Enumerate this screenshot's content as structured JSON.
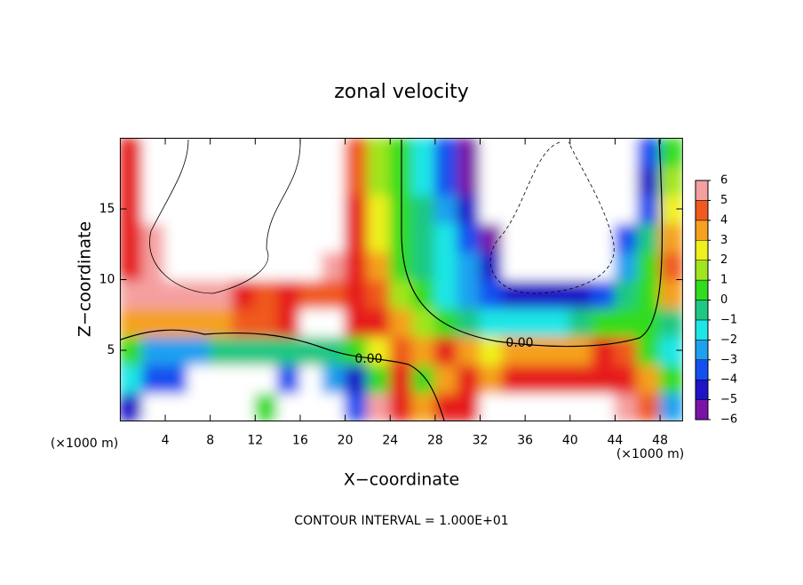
{
  "chart_data": {
    "type": "heatmap",
    "title": "zonal velocity",
    "x_label": "X−coordinate",
    "y_label": "Z−coordinate",
    "x_unit": "(×1000 m)",
    "y_unit": "(×1000 m)",
    "footer": "CONTOUR INTERVAL = 1.000E+01",
    "contour_labels": [
      "0.00",
      "0.00"
    ],
    "xlim": [
      0,
      50
    ],
    "ylim": [
      0,
      20
    ],
    "xticks": [
      4,
      8,
      12,
      16,
      20,
      24,
      28,
      32,
      36,
      40,
      44,
      48
    ],
    "yticks": [
      5,
      10,
      15
    ],
    "x": [
      1,
      3,
      5,
      7,
      9,
      11,
      13,
      15,
      17,
      19,
      21,
      23,
      25,
      27,
      29,
      31,
      33,
      35,
      37,
      39,
      41,
      43,
      45,
      47,
      49
    ],
    "y": [
      1,
      3,
      5,
      7,
      9,
      11,
      13,
      15,
      17,
      19
    ],
    "values": [
      [
        -5,
        9,
        9,
        9,
        9,
        9,
        0,
        9,
        9,
        9,
        -4,
        6,
        5,
        3,
        5,
        5,
        9,
        9,
        9,
        9,
        9,
        9,
        6,
        4,
        -3
      ],
      [
        -2,
        -4,
        -4,
        9,
        9,
        9,
        9,
        -4,
        9,
        -3,
        -5,
        0,
        5,
        0,
        3,
        5,
        3,
        5,
        5,
        5,
        5,
        5,
        5,
        3,
        0
      ],
      [
        0,
        -3,
        -3,
        -3,
        -1,
        -1,
        -1,
        -1,
        -1,
        -1,
        0,
        2,
        4,
        3,
        5,
        3,
        2,
        3,
        3,
        3,
        3,
        5,
        4,
        0,
        -2
      ],
      [
        3,
        3,
        3,
        3,
        3,
        4,
        4,
        5,
        9,
        9,
        5,
        5,
        3,
        1,
        0,
        -1,
        -2,
        -2,
        -2,
        -2,
        -1,
        0,
        0,
        0,
        -1
      ],
      [
        6,
        6,
        6,
        6,
        6,
        5,
        4,
        5,
        4,
        4,
        5,
        4,
        1,
        0,
        -2,
        -3,
        -4,
        -5,
        -5,
        -5,
        -5,
        -4,
        -1,
        0,
        3
      ],
      [
        5,
        6,
        9,
        9,
        9,
        9,
        9,
        9,
        9,
        6,
        5,
        3,
        0,
        -1,
        -2,
        -3,
        -5,
        9,
        9,
        9,
        9,
        9,
        -3,
        0,
        4
      ],
      [
        5,
        6,
        9,
        9,
        9,
        9,
        9,
        9,
        9,
        9,
        5,
        2,
        0,
        -1,
        -2,
        -4,
        -6,
        9,
        9,
        9,
        9,
        9,
        -4,
        -1,
        3
      ],
      [
        5,
        7,
        9,
        9,
        9,
        9,
        9,
        9,
        9,
        9,
        5,
        2,
        0,
        -1,
        -3,
        -5,
        9,
        9,
        9,
        9,
        9,
        9,
        9,
        -4,
        2
      ],
      [
        5,
        7,
        9,
        9,
        9,
        9,
        9,
        9,
        9,
        9,
        4,
        1,
        0,
        -2,
        -4,
        -6,
        9,
        9,
        9,
        9,
        9,
        9,
        9,
        -5,
        1
      ],
      [
        5,
        7,
        9,
        9,
        9,
        9,
        9,
        9,
        9,
        9,
        4,
        1,
        0,
        -2,
        -4,
        -6,
        9,
        9,
        9,
        9,
        9,
        9,
        9,
        -4,
        0
      ]
    ],
    "colorbar_ticks": [
      {
        "value": -6,
        "label": "−6"
      },
      {
        "value": -5,
        "label": "−5"
      },
      {
        "value": -4,
        "label": "−4"
      },
      {
        "value": -3,
        "label": "−3"
      },
      {
        "value": -2,
        "label": "−2"
      },
      {
        "value": -1,
        "label": "−1"
      },
      0,
      1,
      2,
      3,
      4,
      5,
      6
    ],
    "colors": [
      "#7a14a8",
      "#1e14c8",
      "#1450f0",
      "#1ea0f0",
      "#1ee6e6",
      "#1ec882",
      "#32dc1e",
      "#a0e61e",
      "#f0f01e",
      "#f5a01e",
      "#f05a1e",
      "#e61e1e"
    ],
    "top_color": "#f5a0a0",
    "above_color": "#ffffff"
  }
}
